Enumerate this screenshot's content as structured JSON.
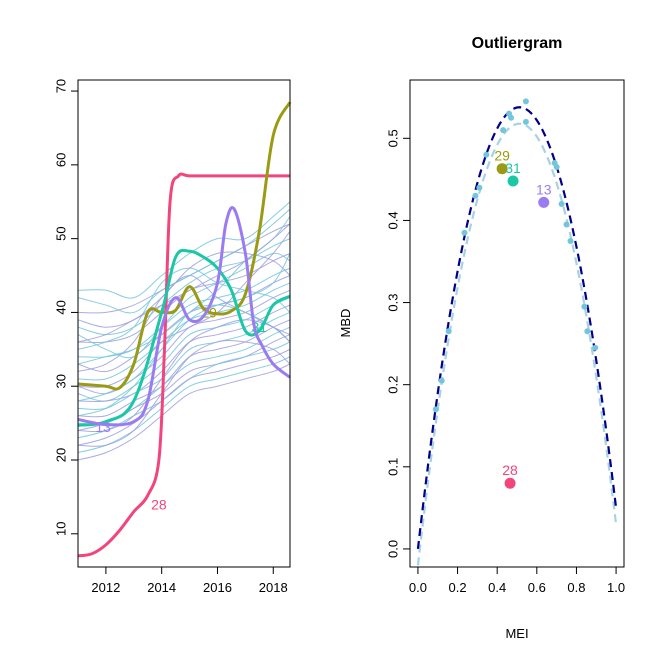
{
  "chart_data": [
    {
      "type": "line",
      "title": "",
      "xlabel": "",
      "ylabel": "",
      "xlim": [
        2011,
        2018.6
      ],
      "ylim": [
        5.5,
        71.5
      ],
      "x_ticks": [
        "2012",
        "2014",
        "2016",
        "2018"
      ],
      "y_ticks": [
        "10",
        "20",
        "30",
        "40",
        "50",
        "60",
        "70"
      ],
      "background_series": {
        "colors": [
          "#72c6dc",
          "#9e9ede"
        ],
        "count": 30,
        "x": [
          2011,
          2012,
          2013,
          2014,
          2015,
          2016,
          2017,
          2018,
          2018.6
        ],
        "curves": [
          [
            43,
            43,
            42,
            45,
            48,
            50,
            50,
            53,
            55
          ],
          [
            40,
            40,
            41,
            43,
            45,
            47,
            49,
            51,
            52
          ],
          [
            38,
            37,
            38,
            41,
            44,
            46,
            47,
            49,
            50
          ],
          [
            36,
            36,
            37,
            40,
            43,
            44,
            45,
            47,
            48
          ],
          [
            34,
            34,
            35,
            38,
            41,
            42,
            43,
            45,
            46
          ],
          [
            33,
            32,
            34,
            37,
            40,
            41,
            42,
            44,
            45
          ],
          [
            31,
            31,
            33,
            36,
            39,
            40,
            41,
            43,
            44
          ],
          [
            30,
            29,
            31,
            34,
            38,
            39,
            40,
            42,
            43
          ],
          [
            29,
            28,
            30,
            33,
            37,
            38,
            39,
            41,
            42
          ],
          [
            28,
            28,
            29,
            32,
            36,
            37,
            38,
            40,
            41
          ],
          [
            27,
            27,
            29,
            31,
            35,
            36,
            37,
            39,
            40
          ],
          [
            26,
            26,
            28,
            30,
            34,
            35,
            36,
            38,
            39
          ],
          [
            25,
            25,
            27,
            30,
            33,
            34,
            35,
            37,
            38
          ],
          [
            24,
            25,
            27,
            29,
            32,
            33,
            34,
            36,
            37
          ],
          [
            23,
            24,
            26,
            28,
            31,
            33,
            34,
            35,
            36
          ],
          [
            22,
            23,
            25,
            28,
            31,
            32,
            33,
            34,
            35
          ],
          [
            21,
            22,
            24,
            27,
            30,
            31,
            32,
            33,
            34
          ],
          [
            20,
            21,
            23,
            26,
            29,
            30,
            31,
            32,
            33
          ],
          [
            35,
            36,
            38,
            44,
            46,
            44,
            43,
            42,
            40
          ],
          [
            32,
            33,
            36,
            42,
            45,
            42,
            40,
            38,
            37
          ],
          [
            37,
            35,
            34,
            38,
            42,
            44,
            46,
            48,
            47
          ],
          [
            39,
            38,
            39,
            42,
            46,
            48,
            48,
            47,
            45
          ],
          [
            26,
            27,
            30,
            35,
            40,
            41,
            40,
            38,
            36
          ],
          [
            24,
            24,
            26,
            31,
            36,
            38,
            39,
            38,
            36
          ],
          [
            33,
            34,
            35,
            37,
            40,
            43,
            47,
            50,
            53
          ],
          [
            30,
            30,
            32,
            36,
            38,
            40,
            44,
            48,
            51
          ],
          [
            28,
            29,
            31,
            35,
            39,
            41,
            42,
            44,
            48
          ],
          [
            22,
            22,
            24,
            29,
            34,
            36,
            36,
            35,
            33
          ],
          [
            42,
            41,
            40,
            43,
            45,
            47,
            49,
            52,
            54
          ],
          [
            36,
            37,
            39,
            41,
            43,
            45,
            47,
            50,
            52
          ]
        ]
      },
      "series": [
        {
          "label": "28",
          "color": "#f1457b",
          "x": [
            2011,
            2011.5,
            2012,
            2012.5,
            2013,
            2013.5,
            2013.9,
            2014.1,
            2014.3,
            2014.6,
            2015,
            2016,
            2017,
            2018,
            2018.6
          ],
          "values": [
            7,
            7.3,
            8.5,
            10.5,
            13,
            15.2,
            20,
            35,
            55,
            58.5,
            58.5,
            58.5,
            58.5,
            58.5,
            58.5
          ],
          "label_at": [
            2013.9,
            14
          ]
        },
        {
          "label": "29",
          "color": "#9b9a13",
          "x": [
            2011,
            2012,
            2012.5,
            2013,
            2013.5,
            2014,
            2014.5,
            2015,
            2015.5,
            2016,
            2016.5,
            2017,
            2017.5,
            2018,
            2018.6
          ],
          "values": [
            30.3,
            30,
            29.8,
            33,
            40,
            40,
            40.3,
            43.5,
            40.5,
            39.8,
            40.2,
            42.5,
            51,
            64,
            68.5
          ],
          "label_at": [
            2015.7,
            40
          ]
        },
        {
          "label": "31",
          "color": "#1bc8a6",
          "x": [
            2011,
            2012,
            2013,
            2014,
            2014.5,
            2015,
            2015.5,
            2016,
            2016.5,
            2017,
            2017.5,
            2018,
            2018.6
          ],
          "values": [
            24.7,
            25.2,
            28,
            40,
            47.5,
            48.3,
            47.5,
            46,
            43,
            37.5,
            37.5,
            41,
            42.2
          ],
          "label_at": [
            2017.5,
            38
          ]
        },
        {
          "label": "13",
          "color": "#9b7cf0",
          "x": [
            2011,
            2012,
            2013,
            2013.5,
            2014,
            2014.5,
            2015,
            2015.5,
            2016,
            2016.3,
            2016.6,
            2017,
            2017.3,
            2017.6,
            2018,
            2018.6
          ],
          "values": [
            25.5,
            24.8,
            25.2,
            28,
            38,
            42,
            39,
            39.5,
            44,
            52,
            54,
            48,
            38.5,
            35.5,
            33,
            31.2
          ],
          "label_at": [
            2011.9,
            24.5
          ]
        }
      ]
    },
    {
      "type": "scatter",
      "title": "Outliergram",
      "xlabel": "MEI",
      "ylabel": "MBD",
      "xlim": [
        -0.04,
        1.04
      ],
      "ylim": [
        -0.022,
        0.571
      ],
      "x_ticks": [
        "0.0",
        "0.2",
        "0.4",
        "0.6",
        "0.8",
        "1.0"
      ],
      "y_ticks": [
        "0.0",
        "0.1",
        "0.2",
        "0.3",
        "0.4",
        "0.5"
      ],
      "bound_curves": {
        "outer": {
          "color": "#00008b",
          "style": "dashed",
          "a0": 0,
          "a1": 2.1,
          "a2": -2.05
        },
        "inner": {
          "color": "#a6d2e3",
          "style": "dashed",
          "a0": -0.02,
          "a1": 2.1,
          "a2": -2.05
        }
      },
      "background_points": {
        "color": "#72c6dc",
        "points": [
          [
            0.09,
            0.17
          ],
          [
            0.12,
            0.205
          ],
          [
            0.155,
            0.265
          ],
          [
            0.235,
            0.385
          ],
          [
            0.29,
            0.43
          ],
          [
            0.31,
            0.44
          ],
          [
            0.345,
            0.48
          ],
          [
            0.43,
            0.51
          ],
          [
            0.46,
            0.53
          ],
          [
            0.47,
            0.525
          ],
          [
            0.545,
            0.52
          ],
          [
            0.545,
            0.545
          ],
          [
            0.69,
            0.47
          ],
          [
            0.7,
            0.465
          ],
          [
            0.725,
            0.42
          ],
          [
            0.75,
            0.395
          ],
          [
            0.77,
            0.375
          ],
          [
            0.84,
            0.295
          ],
          [
            0.855,
            0.265
          ],
          [
            0.895,
            0.245
          ]
        ]
      },
      "highlighted_points": [
        {
          "label": "29",
          "color": "#9b9a13",
          "x": 0.425,
          "y": 0.463
        },
        {
          "label": "31",
          "color": "#1bc8a6",
          "x": 0.48,
          "y": 0.448
        },
        {
          "label": "13",
          "color": "#9b7cf0",
          "x": 0.635,
          "y": 0.422
        },
        {
          "label": "28",
          "color": "#f1457b",
          "x": 0.465,
          "y": 0.08
        }
      ]
    }
  ]
}
